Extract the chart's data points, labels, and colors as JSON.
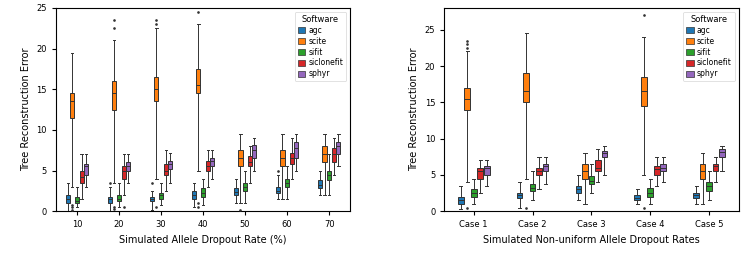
{
  "software": [
    "agc",
    "scite",
    "sifit",
    "siclonefit",
    "sphyr"
  ],
  "colors": {
    "agc": "#1f77b4",
    "scite": "#ff7f0e",
    "sifit": "#2ca02c",
    "siclonefit": "#d62728",
    "sphyr": "#9467bd"
  },
  "plot1": {
    "xlabel": "Simulated Allele Dropout Rate (%)",
    "ylabel": "Tree Reconstruction Error",
    "xtick_labels": [
      "10",
      "20",
      "30",
      "40",
      "50",
      "60",
      "70"
    ],
    "ylim": [
      0,
      25
    ],
    "data": {
      "agc": {
        "10": {
          "whislo": 0.0,
          "q1": 1.0,
          "med": 1.5,
          "q3": 2.0,
          "whishi": 3.5,
          "fliers_high": [],
          "fliers_low": []
        },
        "20": {
          "whislo": 0.0,
          "q1": 1.0,
          "med": 1.5,
          "q3": 1.8,
          "whishi": 3.0,
          "fliers_high": [
            3.5
          ],
          "fliers_low": []
        },
        "30": {
          "whislo": 0.2,
          "q1": 1.2,
          "med": 1.5,
          "q3": 1.8,
          "whishi": 2.5,
          "fliers_high": [
            3.5
          ],
          "fliers_low": []
        },
        "40": {
          "whislo": 0.5,
          "q1": 1.5,
          "med": 2.0,
          "q3": 2.5,
          "whishi": 3.5,
          "fliers_high": [],
          "fliers_low": []
        },
        "50": {
          "whislo": 1.0,
          "q1": 2.0,
          "med": 2.3,
          "q3": 2.8,
          "whishi": 4.0,
          "fliers_high": [],
          "fliers_low": []
        },
        "60": {
          "whislo": 1.5,
          "q1": 2.2,
          "med": 2.5,
          "q3": 3.0,
          "whishi": 4.5,
          "fliers_high": [
            5.0
          ],
          "fliers_low": []
        },
        "70": {
          "whislo": 2.0,
          "q1": 2.8,
          "med": 3.2,
          "q3": 3.8,
          "whishi": 5.0,
          "fliers_high": [],
          "fliers_low": []
        }
      },
      "scite": {
        "10": {
          "whislo": 3.0,
          "q1": 11.5,
          "med": 13.5,
          "q3": 14.5,
          "whishi": 19.5,
          "fliers_high": [],
          "fliers_low": [
            0.2,
            0.5,
            0.8
          ]
        },
        "20": {
          "whislo": 3.5,
          "q1": 12.5,
          "med": 14.5,
          "q3": 16.0,
          "whishi": 21.0,
          "fliers_high": [
            22.5,
            23.5
          ],
          "fliers_low": [
            0.3,
            0.5
          ]
        },
        "30": {
          "whislo": 4.0,
          "q1": 13.5,
          "med": 15.0,
          "q3": 16.5,
          "whishi": 22.5,
          "fliers_high": [
            23.0,
            23.5
          ],
          "fliers_low": [
            0.5
          ]
        },
        "40": {
          "whislo": 5.0,
          "q1": 14.5,
          "med": 15.5,
          "q3": 17.5,
          "whishi": 23.0,
          "fliers_high": [
            24.5
          ],
          "fliers_low": [
            0.5,
            1.0
          ]
        },
        "50": {
          "whislo": 1.0,
          "q1": 5.5,
          "med": 6.5,
          "q3": 7.5,
          "whishi": 9.5,
          "fliers_high": [],
          "fliers_low": [
            0.2
          ]
        },
        "60": {
          "whislo": 1.5,
          "q1": 5.5,
          "med": 6.5,
          "q3": 7.5,
          "whishi": 9.5,
          "fliers_high": [],
          "fliers_low": []
        },
        "70": {
          "whislo": 2.0,
          "q1": 6.0,
          "med": 7.0,
          "q3": 8.0,
          "whishi": 9.5,
          "fliers_high": [],
          "fliers_low": []
        }
      },
      "sifit": {
        "10": {
          "whislo": 0.5,
          "q1": 1.0,
          "med": 1.2,
          "q3": 1.8,
          "whishi": 3.0,
          "fliers_high": [],
          "fliers_low": []
        },
        "20": {
          "whislo": 0.5,
          "q1": 1.2,
          "med": 1.5,
          "q3": 2.0,
          "whishi": 3.5,
          "fliers_high": [],
          "fliers_low": []
        },
        "30": {
          "whislo": 0.8,
          "q1": 1.5,
          "med": 2.0,
          "q3": 2.2,
          "whishi": 3.5,
          "fliers_high": [],
          "fliers_low": []
        },
        "40": {
          "whislo": 0.8,
          "q1": 1.8,
          "med": 2.2,
          "q3": 2.8,
          "whishi": 4.0,
          "fliers_high": [],
          "fliers_low": []
        },
        "50": {
          "whislo": 1.0,
          "q1": 2.5,
          "med": 3.0,
          "q3": 3.5,
          "whishi": 5.0,
          "fliers_high": [],
          "fliers_low": []
        },
        "60": {
          "whislo": 1.5,
          "q1": 3.0,
          "med": 3.5,
          "q3": 4.0,
          "whishi": 5.5,
          "fliers_high": [],
          "fliers_low": []
        },
        "70": {
          "whislo": 2.0,
          "q1": 3.8,
          "med": 4.5,
          "q3": 5.0,
          "whishi": 7.0,
          "fliers_high": [],
          "fliers_low": []
        }
      },
      "siclonefit": {
        "10": {
          "whislo": 1.5,
          "q1": 3.5,
          "med": 4.2,
          "q3": 5.0,
          "whishi": 7.0,
          "fliers_high": [],
          "fliers_low": []
        },
        "20": {
          "whislo": 2.0,
          "q1": 4.0,
          "med": 5.0,
          "q3": 5.5,
          "whishi": 7.0,
          "fliers_high": [],
          "fliers_low": [
            0.5
          ]
        },
        "30": {
          "whislo": 2.5,
          "q1": 4.5,
          "med": 5.0,
          "q3": 5.8,
          "whishi": 7.5,
          "fliers_high": [],
          "fliers_low": []
        },
        "40": {
          "whislo": 3.0,
          "q1": 5.0,
          "med": 5.5,
          "q3": 6.2,
          "whishi": 7.5,
          "fliers_high": [],
          "fliers_low": []
        },
        "50": {
          "whislo": 3.5,
          "q1": 5.5,
          "med": 6.0,
          "q3": 6.8,
          "whishi": 8.0,
          "fliers_high": [],
          "fliers_low": []
        },
        "60": {
          "whislo": 4.0,
          "q1": 5.8,
          "med": 6.5,
          "q3": 7.2,
          "whishi": 9.0,
          "fliers_high": [],
          "fliers_low": []
        },
        "70": {
          "whislo": 4.5,
          "q1": 6.0,
          "med": 7.0,
          "q3": 7.8,
          "whishi": 9.0,
          "fliers_high": [],
          "fliers_low": []
        }
      },
      "sphyr": {
        "10": {
          "whislo": 3.0,
          "q1": 4.5,
          "med": 5.5,
          "q3": 5.8,
          "whishi": 7.0,
          "fliers_high": [],
          "fliers_low": []
        },
        "20": {
          "whislo": 3.5,
          "q1": 5.0,
          "med": 5.5,
          "q3": 6.0,
          "whishi": 7.0,
          "fliers_high": [],
          "fliers_low": []
        },
        "30": {
          "whislo": 3.5,
          "q1": 5.2,
          "med": 5.8,
          "q3": 6.2,
          "whishi": 7.2,
          "fliers_high": [],
          "fliers_low": []
        },
        "40": {
          "whislo": 4.0,
          "q1": 5.5,
          "med": 6.2,
          "q3": 6.5,
          "whishi": 7.5,
          "fliers_high": [],
          "fliers_low": []
        },
        "50": {
          "whislo": 5.0,
          "q1": 6.5,
          "med": 7.5,
          "q3": 8.2,
          "whishi": 9.0,
          "fliers_high": [],
          "fliers_low": []
        },
        "60": {
          "whislo": 5.0,
          "q1": 6.5,
          "med": 7.8,
          "q3": 8.5,
          "whishi": 9.5,
          "fliers_high": [],
          "fliers_low": []
        },
        "70": {
          "whislo": 5.5,
          "q1": 7.0,
          "med": 8.0,
          "q3": 8.5,
          "whishi": 9.5,
          "fliers_high": [],
          "fliers_low": []
        }
      }
    }
  },
  "plot2": {
    "xlabel": "Simulated Non-uniform Allele Dropout Rates",
    "ylabel": "Tree Reconstruction Error",
    "xtick_labels": [
      "Case 1",
      "Case 2",
      "Case 3",
      "Case 4",
      "Case 5"
    ],
    "ylim": [
      0,
      28
    ],
    "data": {
      "agc": {
        "Case 1": {
          "whislo": 0.3,
          "q1": 1.0,
          "med": 1.5,
          "q3": 2.0,
          "whishi": 3.5,
          "fliers_high": [],
          "fliers_low": []
        },
        "Case 2": {
          "whislo": 0.5,
          "q1": 1.8,
          "med": 2.2,
          "q3": 2.5,
          "whishi": 4.0,
          "fliers_high": [],
          "fliers_low": []
        },
        "Case 3": {
          "whislo": 1.5,
          "q1": 2.5,
          "med": 3.0,
          "q3": 3.5,
          "whishi": 5.0,
          "fliers_high": [],
          "fliers_low": []
        },
        "Case 4": {
          "whislo": 1.0,
          "q1": 1.5,
          "med": 1.8,
          "q3": 2.2,
          "whishi": 3.0,
          "fliers_high": [],
          "fliers_low": []
        },
        "Case 5": {
          "whislo": 1.0,
          "q1": 1.8,
          "med": 2.2,
          "q3": 2.5,
          "whishi": 3.5,
          "fliers_high": [],
          "fliers_low": []
        }
      },
      "scite": {
        "Case 1": {
          "whislo": 4.0,
          "q1": 14.0,
          "med": 15.5,
          "q3": 17.0,
          "whishi": 22.0,
          "fliers_high": [
            22.5,
            23.0,
            23.5
          ],
          "fliers_low": [
            0.5
          ]
        },
        "Case 2": {
          "whislo": 4.5,
          "q1": 15.0,
          "med": 16.5,
          "q3": 19.0,
          "whishi": 24.5,
          "fliers_high": [],
          "fliers_low": [
            0.5
          ]
        },
        "Case 3": {
          "whislo": 1.0,
          "q1": 4.5,
          "med": 5.5,
          "q3": 6.5,
          "whishi": 8.0,
          "fliers_high": [],
          "fliers_low": []
        },
        "Case 4": {
          "whislo": 5.0,
          "q1": 14.5,
          "med": 16.5,
          "q3": 18.5,
          "whishi": 24.0,
          "fliers_high": [
            27.0
          ],
          "fliers_low": [
            0.5
          ]
        },
        "Case 5": {
          "whislo": 1.0,
          "q1": 4.5,
          "med": 5.5,
          "q3": 6.5,
          "whishi": 8.0,
          "fliers_high": [],
          "fliers_low": []
        }
      },
      "sifit": {
        "Case 1": {
          "whislo": 1.0,
          "q1": 2.0,
          "med": 2.5,
          "q3": 3.0,
          "whishi": 4.5,
          "fliers_high": [],
          "fliers_low": []
        },
        "Case 2": {
          "whislo": 1.5,
          "q1": 2.8,
          "med": 3.2,
          "q3": 3.8,
          "whishi": 5.5,
          "fliers_high": [],
          "fliers_low": []
        },
        "Case 3": {
          "whislo": 2.5,
          "q1": 3.8,
          "med": 4.2,
          "q3": 4.8,
          "whishi": 6.5,
          "fliers_high": [],
          "fliers_low": []
        },
        "Case 4": {
          "whislo": 1.0,
          "q1": 2.0,
          "med": 2.5,
          "q3": 3.2,
          "whishi": 4.5,
          "fliers_high": [],
          "fliers_low": []
        },
        "Case 5": {
          "whislo": 1.5,
          "q1": 2.8,
          "med": 3.5,
          "q3": 4.0,
          "whishi": 5.5,
          "fliers_high": [],
          "fliers_low": []
        }
      },
      "siclonefit": {
        "Case 1": {
          "whislo": 2.5,
          "q1": 4.5,
          "med": 5.5,
          "q3": 6.0,
          "whishi": 7.0,
          "fliers_high": [],
          "fliers_low": []
        },
        "Case 2": {
          "whislo": 3.0,
          "q1": 5.0,
          "med": 5.5,
          "q3": 6.0,
          "whishi": 7.5,
          "fliers_high": [],
          "fliers_low": []
        },
        "Case 3": {
          "whislo": 4.0,
          "q1": 5.5,
          "med": 6.0,
          "q3": 7.0,
          "whishi": 8.5,
          "fliers_high": [],
          "fliers_low": []
        },
        "Case 4": {
          "whislo": 3.5,
          "q1": 5.0,
          "med": 5.8,
          "q3": 6.2,
          "whishi": 7.5,
          "fliers_high": [],
          "fliers_low": []
        },
        "Case 5": {
          "whislo": 4.0,
          "q1": 5.5,
          "med": 6.2,
          "q3": 6.5,
          "whishi": 7.5,
          "fliers_high": [],
          "fliers_low": []
        }
      },
      "sphyr": {
        "Case 1": {
          "whislo": 3.5,
          "q1": 5.0,
          "med": 6.0,
          "q3": 6.2,
          "whishi": 7.0,
          "fliers_high": [],
          "fliers_low": []
        },
        "Case 2": {
          "whislo": 3.8,
          "q1": 5.5,
          "med": 6.2,
          "q3": 6.5,
          "whishi": 7.5,
          "fliers_high": [],
          "fliers_low": []
        },
        "Case 3": {
          "whislo": 5.0,
          "q1": 7.5,
          "med": 8.0,
          "q3": 8.3,
          "whishi": 9.0,
          "fliers_high": [],
          "fliers_low": []
        },
        "Case 4": {
          "whislo": 4.0,
          "q1": 5.5,
          "med": 6.0,
          "q3": 6.5,
          "whishi": 7.5,
          "fliers_high": [],
          "fliers_low": []
        },
        "Case 5": {
          "whislo": 5.5,
          "q1": 7.5,
          "med": 8.2,
          "q3": 8.5,
          "whishi": 9.0,
          "fliers_high": [],
          "fliers_low": []
        }
      }
    }
  },
  "legend_title": "Software",
  "box_width": 0.11,
  "linewidth": 0.7,
  "flier_size": 1.8
}
